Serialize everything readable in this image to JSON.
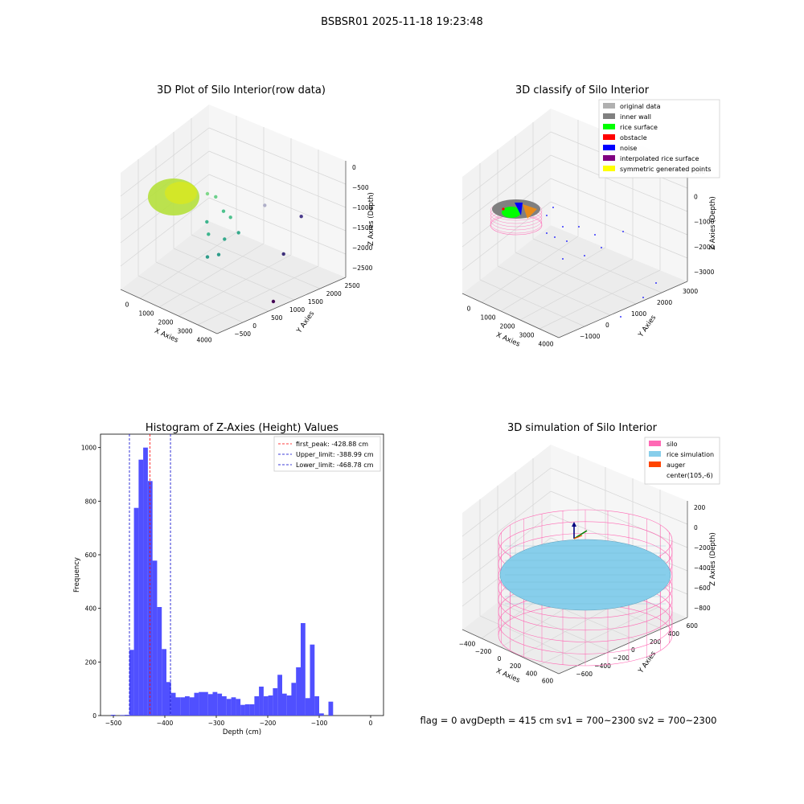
{
  "suptitle": "BSBSR01 2025-11-18 19:23:48",
  "footer_text": "flag = 0     avgDepth = 415 cm  sv1 = 700~2300  sv2 = 700~2300",
  "colors": {
    "hist_bar": "#5050ff",
    "first_peak_line": "#ff0000",
    "limit_line": "#0000cc",
    "silo_wire": "#ff69b4",
    "rice_sim": "#87ceeb",
    "pane": "#f2f2f2",
    "grid": "#d6d6d6"
  },
  "chart_data": [
    {
      "type": "scatter3d",
      "title": "3D Plot of Silo Interior(row data)",
      "xlabel": "X Axies",
      "ylabel": "Y Axies",
      "zlabel": "Z Axies (Depth)",
      "xticks": [
        "0",
        "1000",
        "2000",
        "3000",
        "4000"
      ],
      "yticks": [
        "−500",
        "0",
        "500",
        "1000",
        "1500",
        "2000",
        "2500"
      ],
      "zticks": [
        "0",
        "−500",
        "−1000",
        "−1500",
        "−2000",
        "−2500"
      ],
      "xlim": [
        -500,
        4000
      ],
      "ylim": [
        -700,
        2600
      ],
      "zlim": [
        -2800,
        0
      ],
      "cluster_note": "dense point cloud near origin",
      "points": [
        {
          "x": 800,
          "y": 300,
          "z": -500,
          "c": "#7fd88a"
        },
        {
          "x": 1000,
          "y": 450,
          "z": -600,
          "c": "#6cd08c"
        },
        {
          "x": 1300,
          "y": 500,
          "z": -900,
          "c": "#4fc28e"
        },
        {
          "x": 1500,
          "y": 600,
          "z": -1050,
          "c": "#4fc28e"
        },
        {
          "x": 900,
          "y": 200,
          "z": -1100,
          "c": "#3db58e"
        },
        {
          "x": 1100,
          "y": 100,
          "z": -1300,
          "c": "#3db58e"
        },
        {
          "x": 1600,
          "y": 300,
          "z": -1400,
          "c": "#35a98c"
        },
        {
          "x": 2000,
          "y": 500,
          "z": -1250,
          "c": "#35a98c"
        },
        {
          "x": 1300,
          "y": -100,
          "z": -1700,
          "c": "#2e9c8a"
        },
        {
          "x": 1700,
          "y": 0,
          "z": -1600,
          "c": "#2e9c8a"
        },
        {
          "x": 2600,
          "y": 1000,
          "z": -700,
          "c": "#b0b0c8"
        },
        {
          "x": 3300,
          "y": 1800,
          "z": -1200,
          "c": "#4b3c8c"
        },
        {
          "x": 3100,
          "y": 1300,
          "z": -1900,
          "c": "#3d2f7a"
        },
        {
          "x": 3500,
          "y": 600,
          "z": -2600,
          "c": "#440154"
        }
      ]
    },
    {
      "type": "scatter3d",
      "title": "3D classify of Silo Interior",
      "xlabel": "X Axies",
      "ylabel": "Y Axies",
      "zlabel": "Z Axies (Depth)",
      "xticks": [
        "0",
        "1000",
        "2000",
        "3000",
        "4000"
      ],
      "yticks": [
        "−1000",
        "0",
        "1000",
        "2000",
        "3000"
      ],
      "zticks": [
        "100",
        "0",
        "−1000",
        "−2000",
        "−3000"
      ],
      "legend": [
        {
          "label": "original data",
          "color": "#b0b0b0"
        },
        {
          "label": "inner wall",
          "color": "#808080"
        },
        {
          "label": "rice surface",
          "color": "#00ff00"
        },
        {
          "label": "obstacle",
          "color": "#ff0000"
        },
        {
          "label": "noise",
          "color": "#0000ff"
        },
        {
          "label": "interpolated rice surface",
          "color": "#800080"
        },
        {
          "label": "symmetric generated points",
          "color": "#ffff00"
        }
      ]
    },
    {
      "type": "bar",
      "title": "Histogram of Z-Axies (Height) Values",
      "xlabel": "Depth (cm)",
      "ylabel": "Frequency",
      "xlim": [
        -525,
        25
      ],
      "ylim": [
        0,
        1050
      ],
      "xticks": [
        -500,
        -400,
        -300,
        -200,
        -100,
        0
      ],
      "xtick_labels": [
        "−500",
        "−400",
        "−300",
        "−200",
        "−100",
        "0"
      ],
      "yticks": [
        0,
        200,
        400,
        600,
        800,
        1000
      ],
      "bin_width": 9.0,
      "bin_start": -505,
      "values": [
        3,
        0,
        2,
        3,
        245,
        775,
        955,
        1000,
        875,
        578,
        405,
        248,
        125,
        85,
        68,
        68,
        72,
        68,
        85,
        88,
        88,
        80,
        88,
        82,
        72,
        62,
        68,
        62,
        40,
        42,
        42,
        72,
        108,
        72,
        75,
        102,
        152,
        82,
        75,
        122,
        180,
        345,
        65,
        265,
        72,
        8,
        0,
        52
      ],
      "vlines": [
        {
          "x": -428.88,
          "label": "first_peak: -428.88 cm",
          "color": "#ff0000"
        },
        {
          "x": -388.99,
          "label": "Upper_limit: -388.99 cm",
          "color": "#0000cc"
        },
        {
          "x": -468.78,
          "label": "Lower_limit: -468.78 cm",
          "color": "#0000cc"
        }
      ]
    },
    {
      "type": "surface3d",
      "title": "3D simulation of Silo Interior",
      "xlabel": "X Axies",
      "ylabel": "Y Axies",
      "zlabel": "Z Axies (Depth)",
      "xticks": [
        "−400",
        "−200",
        "0",
        "200",
        "400",
        "600"
      ],
      "yticks": [
        "−600",
        "−400",
        "−200",
        "0",
        "200",
        "400",
        "600"
      ],
      "zticks": [
        "200",
        "0",
        "−200",
        "−400",
        "−600",
        "−800"
      ],
      "legend": [
        {
          "label": "silo",
          "color": "#ff69b4"
        },
        {
          "label": "rice simulation",
          "color": "#87ceeb"
        },
        {
          "label": "auger",
          "color": "#ff4500"
        },
        {
          "label": "center(105,-6)",
          "color": ""
        }
      ]
    }
  ]
}
